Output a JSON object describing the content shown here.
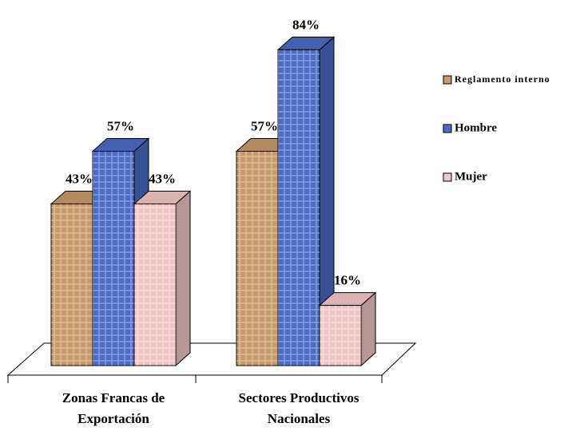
{
  "chart_data": {
    "type": "bar3d",
    "categories": [
      "Zonas Francas de Exportación",
      "Sectores Productivos Nacionales"
    ],
    "series": [
      {
        "name": "Reglamento interno",
        "color": "#c89a6a",
        "values": [
          43,
          57
        ],
        "value_labels": [
          "43%",
          "57%"
        ]
      },
      {
        "name": "Hombre",
        "color": "#4a6cc4",
        "values": [
          57,
          84
        ],
        "value_labels": [
          "57%",
          "84%"
        ]
      },
      {
        "name": "Mujer",
        "color": "#f2c6c6",
        "values": [
          43,
          16
        ],
        "value_labels": [
          "43%",
          "16%"
        ]
      }
    ]
  }
}
